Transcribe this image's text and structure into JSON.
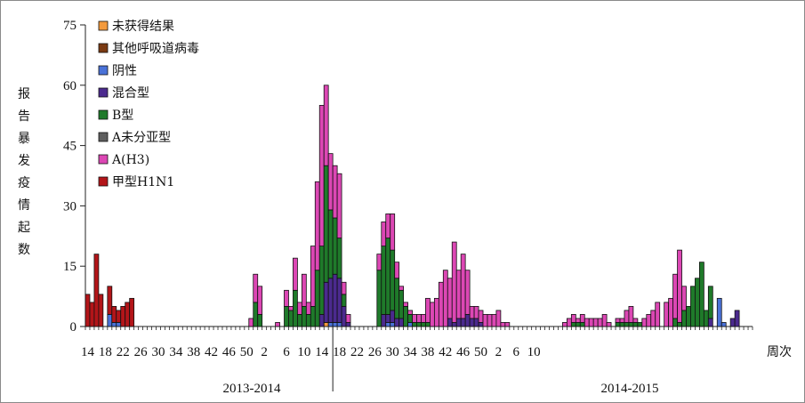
{
  "chart_data": {
    "type": "bar",
    "stacked": true,
    "ylabel": "报告暴发疫情起数",
    "xlabel": "周次",
    "ylim": [
      0,
      75
    ],
    "yticks": [
      0,
      15,
      30,
      45,
      60,
      75
    ],
    "x_tick_labels": [
      "14",
      "18",
      "22",
      "26",
      "30",
      "34",
      "38",
      "42",
      "46",
      "50",
      "2",
      "6",
      "10",
      "14",
      "18",
      "22",
      "26",
      "30",
      "34",
      "38",
      "42",
      "46",
      "50",
      "2",
      "6",
      "10"
    ],
    "seasons": [
      "2013-2014",
      "2014-2015"
    ],
    "legend_position": "top-left",
    "series": [
      {
        "name": "未获得结果",
        "color": "#f39a3d",
        "values": [
          0,
          0,
          0,
          0,
          0,
          0,
          0,
          0,
          0,
          0,
          0,
          0,
          0,
          0,
          0,
          0,
          0,
          0,
          0,
          0,
          0,
          0,
          0,
          0,
          0,
          0,
          0,
          0,
          0,
          0,
          0,
          0,
          0,
          0,
          0,
          0,
          0,
          0,
          0,
          0,
          0,
          0,
          0,
          0,
          0,
          0,
          0,
          0,
          0,
          0,
          0,
          0,
          0,
          0,
          1,
          0,
          0,
          0,
          0,
          0,
          0,
          0,
          0,
          0,
          0,
          0,
          0,
          0,
          0,
          0,
          0,
          0,
          0,
          0,
          0,
          0,
          0,
          0,
          0,
          0,
          0,
          0,
          0,
          0,
          0,
          0,
          0,
          0,
          0,
          0,
          0,
          0,
          0,
          0,
          0,
          0,
          0,
          0,
          0,
          0,
          0,
          0,
          0,
          0,
          0,
          0,
          0,
          0,
          0,
          0,
          0,
          0,
          0,
          0,
          0,
          0,
          0,
          0,
          0,
          0,
          0,
          0,
          0,
          0,
          0,
          0,
          0,
          0,
          0,
          0,
          0,
          0,
          0,
          0,
          0,
          0,
          0,
          0,
          0,
          0,
          0,
          0,
          0,
          0,
          0,
          0,
          0,
          0,
          0,
          0,
          0
        ]
      },
      {
        "name": "其他呼吸道病毒",
        "color": "#7a3a12",
        "values": [
          0,
          0,
          0,
          0,
          0,
          0,
          0,
          0,
          0,
          0,
          0,
          0,
          0,
          0,
          0,
          0,
          0,
          0,
          0,
          0,
          0,
          0,
          0,
          0,
          0,
          0,
          0,
          0,
          0,
          0,
          0,
          0,
          0,
          0,
          0,
          0,
          0,
          0,
          0,
          0,
          0,
          0,
          0,
          0,
          0,
          0,
          0,
          0,
          0,
          0,
          0,
          0,
          0,
          0,
          0,
          0,
          0,
          0,
          0,
          0,
          0,
          0,
          0,
          0,
          0,
          0,
          0,
          0,
          0,
          0,
          0,
          0,
          0,
          0,
          0,
          0,
          0,
          0,
          0,
          0,
          0,
          0,
          0,
          0,
          0,
          0,
          0,
          0,
          0,
          0,
          0,
          0,
          0,
          0,
          0,
          0,
          0,
          0,
          0,
          0,
          0,
          0,
          0,
          0,
          0,
          0,
          0,
          0,
          0,
          0,
          0,
          0,
          0,
          0,
          0,
          0,
          0,
          0,
          0,
          0,
          0,
          0,
          0,
          0,
          0,
          0,
          0,
          0,
          0,
          0,
          0,
          0,
          0,
          0,
          0,
          0,
          0,
          0,
          0,
          0,
          0,
          0,
          0,
          0,
          0,
          0,
          0,
          0,
          0,
          0,
          0
        ]
      },
      {
        "name": "阴性",
        "color": "#4a72d8",
        "values": [
          0,
          0,
          0,
          0,
          0,
          3,
          1,
          1,
          0,
          0,
          0,
          0,
          0,
          0,
          0,
          0,
          0,
          0,
          0,
          0,
          0,
          0,
          0,
          0,
          0,
          0,
          0,
          0,
          0,
          0,
          0,
          0,
          0,
          0,
          0,
          0,
          0,
          0,
          0,
          0,
          0,
          0,
          0,
          0,
          0,
          0,
          0,
          0,
          0,
          0,
          0,
          0,
          0,
          0,
          0,
          1,
          1,
          1,
          0,
          0,
          0,
          0,
          0,
          0,
          0,
          0,
          0,
          0,
          1,
          1,
          0,
          0,
          0,
          1,
          0,
          0,
          0,
          0,
          0,
          0,
          0,
          0,
          0,
          0,
          0,
          0,
          0,
          0,
          0,
          0,
          0,
          0,
          0,
          0,
          0,
          0,
          0,
          0,
          0,
          0,
          0,
          0,
          0,
          0,
          0,
          0,
          0,
          0,
          0,
          0,
          0,
          0,
          0,
          0,
          0,
          0,
          0,
          0,
          0,
          0,
          0,
          0,
          0,
          0,
          0,
          0,
          0,
          0,
          0,
          0,
          0,
          0,
          0,
          0,
          0,
          0,
          0,
          0,
          0,
          0,
          0,
          0,
          0,
          7,
          1,
          0,
          0,
          0,
          0,
          0,
          0
        ]
      },
      {
        "name": "混合型",
        "color": "#4b2a8e",
        "values": [
          0,
          0,
          0,
          0,
          0,
          0,
          0,
          0,
          0,
          0,
          0,
          0,
          0,
          0,
          0,
          0,
          0,
          0,
          0,
          0,
          0,
          0,
          0,
          0,
          0,
          0,
          0,
          0,
          0,
          0,
          0,
          0,
          0,
          0,
          0,
          0,
          0,
          0,
          0,
          0,
          0,
          0,
          0,
          0,
          0,
          0,
          0,
          0,
          0,
          0,
          0,
          0,
          0,
          3,
          10,
          11,
          12,
          11,
          5,
          1,
          0,
          0,
          0,
          0,
          0,
          0,
          0,
          3,
          2,
          3,
          2,
          2,
          0,
          0,
          0,
          0,
          0,
          0,
          0,
          0,
          0,
          0,
          2,
          1,
          2,
          2,
          3,
          2,
          2,
          1,
          0,
          0,
          0,
          0,
          0,
          0,
          0,
          0,
          0,
          0,
          0,
          0,
          0,
          0,
          0,
          0,
          0,
          0,
          0,
          0,
          0,
          0,
          0,
          0,
          0,
          0,
          0,
          0,
          0,
          0,
          0,
          0,
          0,
          0,
          0,
          0,
          0,
          0,
          0,
          0,
          0,
          0,
          0,
          0,
          0,
          0,
          0,
          0,
          0,
          0,
          0,
          2,
          0,
          0,
          0,
          0,
          2,
          4,
          0,
          0,
          0
        ]
      },
      {
        "name": "B型",
        "color": "#1f7a2a",
        "values": [
          0,
          0,
          0,
          0,
          0,
          0,
          0,
          0,
          0,
          0,
          0,
          0,
          0,
          0,
          0,
          0,
          0,
          0,
          0,
          0,
          0,
          0,
          0,
          0,
          0,
          0,
          0,
          0,
          0,
          0,
          0,
          0,
          0,
          0,
          0,
          0,
          0,
          0,
          6,
          3,
          0,
          0,
          0,
          0,
          0,
          5,
          4,
          9,
          3,
          5,
          3,
          5,
          14,
          17,
          29,
          17,
          14,
          10,
          3,
          0,
          0,
          0,
          0,
          0,
          0,
          0,
          14,
          17,
          19,
          15,
          10,
          7,
          5,
          2,
          1,
          1,
          1,
          1,
          0,
          0,
          0,
          0,
          0,
          0,
          0,
          0,
          0,
          0,
          0,
          0,
          0,
          0,
          0,
          0,
          0,
          0,
          0,
          0,
          0,
          0,
          0,
          0,
          0,
          0,
          0,
          0,
          0,
          0,
          0,
          0,
          1,
          1,
          1,
          0,
          0,
          0,
          0,
          0,
          0,
          0,
          1,
          1,
          1,
          1,
          1,
          1,
          0,
          0,
          0,
          0,
          0,
          0,
          0,
          2,
          1,
          4,
          5,
          10,
          12,
          16,
          4,
          8,
          0,
          0,
          0,
          0,
          0,
          0
        ]
      },
      {
        "name": "A未分亚型",
        "color": "#5e5e5e",
        "values": [
          0,
          0,
          0,
          0,
          0,
          0,
          0,
          0,
          0,
          0,
          0,
          0,
          0,
          0,
          0,
          0,
          0,
          0,
          0,
          0,
          0,
          0,
          0,
          0,
          0,
          0,
          0,
          0,
          0,
          0,
          0,
          0,
          0,
          0,
          0,
          0,
          0,
          0,
          0,
          0,
          0,
          0,
          0,
          0,
          0,
          0,
          0,
          0,
          0,
          0,
          0,
          0,
          0,
          0,
          0,
          0,
          0,
          0,
          0,
          0,
          0,
          0,
          0,
          0,
          0,
          0,
          0,
          0,
          0,
          0,
          0,
          0,
          0,
          0,
          0,
          0,
          0,
          0,
          0,
          0,
          0,
          0,
          0,
          0,
          0,
          0,
          0,
          0,
          0,
          0,
          0,
          0,
          0,
          0,
          0,
          0,
          0,
          0,
          0,
          0,
          0,
          0,
          0,
          0,
          0,
          0,
          0,
          0,
          0,
          0,
          0,
          0,
          0,
          0,
          0,
          0,
          0,
          0,
          0,
          0,
          0,
          0,
          0,
          0,
          0,
          0,
          0,
          0,
          0,
          0,
          0,
          0,
          0,
          0,
          0,
          0,
          0,
          0,
          0,
          0,
          0,
          0,
          0,
          0,
          0,
          0,
          0,
          0,
          0,
          0,
          0
        ]
      },
      {
        "name": "A(H3)",
        "color": "#dc47b4",
        "values": [
          0,
          0,
          0,
          0,
          0,
          0,
          0,
          0,
          0,
          0,
          0,
          0,
          0,
          0,
          0,
          0,
          0,
          0,
          0,
          0,
          0,
          0,
          0,
          0,
          0,
          0,
          0,
          0,
          0,
          0,
          0,
          0,
          0,
          0,
          0,
          0,
          0,
          2,
          7,
          7,
          0,
          0,
          0,
          1,
          0,
          4,
          1,
          8,
          3,
          8,
          3,
          15,
          22,
          35,
          20,
          14,
          13,
          16,
          3,
          2,
          0,
          0,
          0,
          0,
          0,
          0,
          4,
          6,
          6,
          9,
          4,
          1,
          1,
          1,
          2,
          2,
          2,
          6,
          6,
          7,
          11,
          14,
          10,
          20,
          12,
          16,
          11,
          3,
          3,
          3,
          3,
          3,
          3,
          4,
          1,
          1,
          0,
          0,
          0,
          0,
          0,
          0,
          0,
          0,
          0,
          0,
          0,
          0,
          1,
          2,
          2,
          1,
          2,
          2,
          2,
          2,
          2,
          3,
          1,
          0,
          1,
          1,
          3,
          4,
          1,
          0,
          2,
          3,
          4,
          6,
          0,
          6,
          7,
          11,
          18,
          6,
          0,
          0,
          0,
          0,
          0,
          0,
          0
        ]
      },
      {
        "name": "甲型H1N1",
        "color": "#b31519",
        "values": [
          8,
          6,
          18,
          8,
          0,
          7,
          4,
          3,
          5,
          6,
          7,
          0,
          0,
          0,
          0,
          0,
          0,
          0,
          0,
          0,
          0,
          0,
          0,
          0,
          0,
          0,
          0,
          0,
          0,
          0,
          0,
          0,
          0,
          0,
          0,
          0,
          0,
          0,
          0,
          0,
          0,
          0,
          0,
          0,
          0,
          0,
          0,
          0,
          0,
          0,
          0,
          0,
          0,
          0,
          0,
          0,
          0,
          0,
          0,
          0,
          0,
          0,
          0,
          0,
          0,
          0,
          0,
          0,
          0,
          0,
          0,
          0,
          0,
          0,
          0,
          0,
          0,
          0,
          0,
          0,
          0,
          0,
          0,
          0,
          0,
          0,
          0,
          0,
          0,
          0,
          0,
          0,
          0,
          0,
          0,
          0,
          0,
          0,
          0,
          0,
          0,
          0,
          0,
          0,
          0,
          0,
          0,
          0,
          0,
          0,
          0,
          0,
          0,
          0,
          0,
          0,
          0,
          0,
          0,
          0,
          0,
          0,
          0,
          0,
          0,
          0,
          0,
          0,
          0,
          0,
          0,
          0,
          0,
          0,
          0,
          0,
          0,
          0,
          0,
          0,
          0,
          0,
          0,
          0,
          0,
          0,
          0,
          0,
          0,
          0,
          0
        ]
      }
    ]
  }
}
